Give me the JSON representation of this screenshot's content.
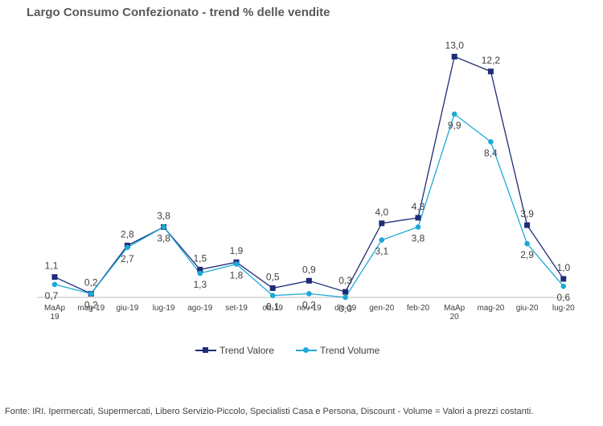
{
  "chart_data": {
    "type": "line",
    "title": "Largo Consumo Confezionato - trend % delle vendite",
    "categories": [
      "MaAp\n19",
      "mag-19",
      "giu-19",
      "lug-19",
      "ago-19",
      "set-19",
      "ott-19",
      "nov-19",
      "dic-19",
      "gen-20",
      "feb-20",
      "MaAp\n20",
      "mag-20",
      "giu-20",
      "lug-20"
    ],
    "series": [
      {
        "name": "Trend Valore",
        "values": [
          1.1,
          0.2,
          2.8,
          3.8,
          1.5,
          1.9,
          0.5,
          0.9,
          0.3,
          4.0,
          4.3,
          13.0,
          12.2,
          3.9,
          1.0
        ],
        "labels": [
          "1,1",
          "0,2",
          "2,8",
          "3,8",
          "1,5",
          "1,9",
          "0,5",
          "0,9",
          "0,3",
          "4,0",
          "4,3",
          "13,0",
          "12,2",
          "3,9",
          "1,0"
        ],
        "color": "#1F2C78",
        "marker": "square"
      },
      {
        "name": "Trend Volume",
        "values": [
          0.7,
          0.2,
          2.7,
          3.8,
          1.3,
          1.8,
          0.1,
          0.2,
          0.0,
          3.1,
          3.8,
          9.9,
          8.4,
          2.9,
          0.6
        ],
        "labels": [
          "0,7",
          "0,2",
          "2,7",
          "3,8",
          "1,3",
          "1,8",
          "0,1",
          "0,2",
          "0,0",
          "3,1",
          "3,8",
          "9,9",
          "8,4",
          "2,9",
          "0,6"
        ],
        "color": "#1CA9D8",
        "marker": "circle"
      }
    ],
    "ylim": [
      0,
      13.8
    ],
    "grid": false,
    "legend_position": "bottom"
  },
  "footer": {
    "source": "Fonte: IRI. Ipermercati, Supermercati, Libero Servizio-Piccolo,  Specialisti Casa e Persona, Discount -  Volume =  Valori a prezzi  costanti."
  }
}
